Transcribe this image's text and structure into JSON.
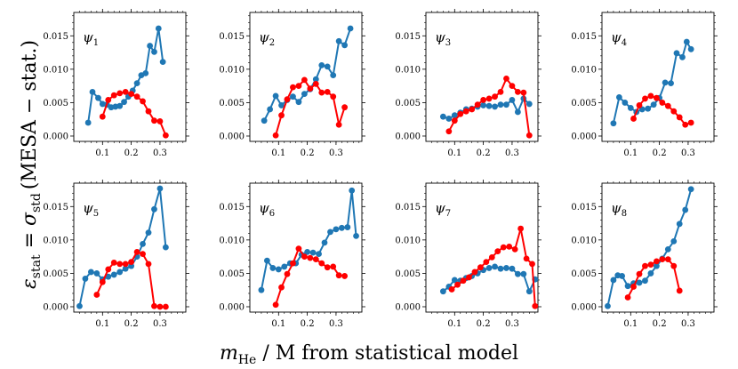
{
  "chart_data": {
    "type": "line",
    "layout": "2x4 grid of panels",
    "xlabel": "m_He / M from statistical model",
    "xlabel_parts": {
      "symbol": "m",
      "sub": "He",
      "rest": " / M from statistical model"
    },
    "ylabel": "ε_stat = σ_std (MESA − stat.)",
    "ylabel_parts": {
      "epsilon": "ε",
      "stat_sub": "stat",
      "equals": " = ",
      "sigma": "σ",
      "std_sub": "std",
      "paren": "(MESA − stat.)"
    },
    "xlim": [
      0.0,
      0.39
    ],
    "ylim": [
      -0.0008,
      0.0185
    ],
    "xticks": [
      0.1,
      0.2,
      0.3
    ],
    "xtick_labels": [
      "0.1",
      "0.2",
      "0.3"
    ],
    "yticks": [
      0.0,
      0.005,
      0.01,
      0.015
    ],
    "ytick_labels": [
      "0.000",
      "0.005",
      "0.010",
      "0.015"
    ],
    "series_colors": {
      "blue": "#1f77b4",
      "red": "#ff0000"
    },
    "panels": [
      {
        "label": "ψ",
        "sub": "1",
        "blue": {
          "x": [
            0.05,
            0.065,
            0.085,
            0.1,
            0.115,
            0.13,
            0.145,
            0.16,
            0.175,
            0.19,
            0.205,
            0.22,
            0.235,
            0.25,
            0.265,
            0.28,
            0.295,
            0.31
          ],
          "y": [
            0.002,
            0.0066,
            0.0057,
            0.0048,
            0.0047,
            0.0043,
            0.0044,
            0.0045,
            0.0051,
            0.0059,
            0.0068,
            0.0079,
            0.0091,
            0.0094,
            0.0135,
            0.0126,
            0.0161,
            0.0111
          ]
        },
        "red": {
          "x": [
            0.1,
            0.12,
            0.14,
            0.16,
            0.18,
            0.2,
            0.22,
            0.24,
            0.26,
            0.28,
            0.3,
            0.32
          ],
          "y": [
            0.0029,
            0.0054,
            0.0061,
            0.0064,
            0.0066,
            0.0063,
            0.0059,
            0.0052,
            0.0037,
            0.0023,
            0.0022,
            0.0001
          ]
        }
      },
      {
        "label": "ψ",
        "sub": "2",
        "blue": {
          "x": [
            0.05,
            0.07,
            0.09,
            0.11,
            0.13,
            0.15,
            0.17,
            0.19,
            0.21,
            0.23,
            0.25,
            0.27,
            0.29,
            0.31,
            0.33,
            0.35
          ],
          "y": [
            0.0023,
            0.004,
            0.006,
            0.0046,
            0.0054,
            0.0059,
            0.0051,
            0.0063,
            0.007,
            0.0085,
            0.0106,
            0.0104,
            0.0091,
            0.0142,
            0.0136,
            0.0161
          ]
        },
        "red": {
          "x": [
            0.09,
            0.11,
            0.13,
            0.15,
            0.17,
            0.19,
            0.21,
            0.23,
            0.25,
            0.27,
            0.29,
            0.31,
            0.33
          ],
          "y": [
            0.0001,
            0.0031,
            0.0055,
            0.0073,
            0.0075,
            0.0084,
            0.0071,
            0.0078,
            0.0065,
            0.0066,
            0.0059,
            0.0017,
            0.0043
          ]
        }
      },
      {
        "label": "ψ",
        "sub": "3",
        "blue": {
          "x": [
            0.06,
            0.08,
            0.1,
            0.12,
            0.14,
            0.16,
            0.18,
            0.2,
            0.22,
            0.24,
            0.26,
            0.28,
            0.3,
            0.32,
            0.34,
            0.36
          ],
          "y": [
            0.0029,
            0.0026,
            0.0031,
            0.0035,
            0.004,
            0.0041,
            0.0044,
            0.0046,
            0.0045,
            0.0044,
            0.0047,
            0.0047,
            0.0054,
            0.0036,
            0.0056,
            0.0048
          ]
        },
        "red": {
          "x": [
            0.08,
            0.1,
            0.12,
            0.14,
            0.16,
            0.18,
            0.2,
            0.22,
            0.24,
            0.26,
            0.28,
            0.3,
            0.32,
            0.34,
            0.36
          ],
          "y": [
            0.0007,
            0.0023,
            0.0033,
            0.0037,
            0.004,
            0.0047,
            0.0054,
            0.0056,
            0.0059,
            0.0066,
            0.0086,
            0.0075,
            0.0066,
            0.0065,
            0.0001
          ]
        }
      },
      {
        "label": "ψ",
        "sub": "4",
        "blue": {
          "x": [
            0.04,
            0.06,
            0.08,
            0.1,
            0.12,
            0.14,
            0.16,
            0.18,
            0.2,
            0.22,
            0.24,
            0.26,
            0.28,
            0.295,
            0.31
          ],
          "y": [
            0.0019,
            0.0058,
            0.005,
            0.0042,
            0.0036,
            0.004,
            0.0041,
            0.0047,
            0.0057,
            0.008,
            0.0079,
            0.0124,
            0.0118,
            0.0141,
            0.013
          ]
        },
        "red": {
          "x": [
            0.11,
            0.13,
            0.15,
            0.17,
            0.19,
            0.21,
            0.23,
            0.25,
            0.27,
            0.29,
            0.31
          ],
          "y": [
            0.0026,
            0.0046,
            0.0056,
            0.006,
            0.0057,
            0.005,
            0.0045,
            0.0037,
            0.0028,
            0.0017,
            0.002
          ]
        }
      },
      {
        "label": "ψ",
        "sub": "5",
        "blue": {
          "x": [
            0.02,
            0.04,
            0.06,
            0.08,
            0.1,
            0.12,
            0.14,
            0.16,
            0.18,
            0.2,
            0.22,
            0.24,
            0.26,
            0.28,
            0.3,
            0.32
          ],
          "y": [
            0.0001,
            0.0042,
            0.0052,
            0.005,
            0.0041,
            0.0045,
            0.0048,
            0.0052,
            0.0057,
            0.0061,
            0.0075,
            0.0094,
            0.0111,
            0.0146,
            0.0177,
            0.0089
          ]
        },
        "red": {
          "x": [
            0.08,
            0.1,
            0.12,
            0.14,
            0.16,
            0.18,
            0.2,
            0.22,
            0.24,
            0.26,
            0.28,
            0.3,
            0.32
          ],
          "y": [
            0.0018,
            0.0037,
            0.0056,
            0.0066,
            0.0064,
            0.0064,
            0.0067,
            0.0082,
            0.0079,
            0.0064,
            0.0001,
            0.0,
            0.0
          ]
        }
      },
      {
        "label": "ψ",
        "sub": "6",
        "blue": {
          "x": [
            0.04,
            0.06,
            0.08,
            0.1,
            0.12,
            0.14,
            0.16,
            0.18,
            0.2,
            0.22,
            0.24,
            0.26,
            0.28,
            0.3,
            0.32,
            0.34,
            0.355,
            0.37
          ],
          "y": [
            0.0025,
            0.0069,
            0.0058,
            0.0056,
            0.006,
            0.0065,
            0.0065,
            0.0078,
            0.0082,
            0.0081,
            0.0079,
            0.0096,
            0.0112,
            0.0116,
            0.0118,
            0.0119,
            0.0174,
            0.0106
          ]
        },
        "red": {
          "x": [
            0.09,
            0.11,
            0.13,
            0.15,
            0.17,
            0.19,
            0.21,
            0.23,
            0.25,
            0.27,
            0.29,
            0.31,
            0.33
          ],
          "y": [
            0.0003,
            0.0029,
            0.0049,
            0.0065,
            0.0087,
            0.0075,
            0.0073,
            0.0071,
            0.0065,
            0.0059,
            0.006,
            0.0047,
            0.0046
          ]
        }
      },
      {
        "label": "ψ",
        "sub": "7",
        "blue": {
          "x": [
            0.06,
            0.08,
            0.1,
            0.12,
            0.14,
            0.16,
            0.18,
            0.2,
            0.22,
            0.24,
            0.26,
            0.28,
            0.3,
            0.32,
            0.34,
            0.36,
            0.38
          ],
          "y": [
            0.0023,
            0.003,
            0.004,
            0.0039,
            0.0043,
            0.0046,
            0.005,
            0.0055,
            0.0058,
            0.006,
            0.0057,
            0.0058,
            0.0057,
            0.0049,
            0.0049,
            0.0023,
            0.0041
          ]
        },
        "red": {
          "x": [
            0.09,
            0.11,
            0.13,
            0.15,
            0.17,
            0.19,
            0.21,
            0.23,
            0.25,
            0.27,
            0.29,
            0.31,
            0.33,
            0.35,
            0.37,
            0.38
          ],
          "y": [
            0.0026,
            0.0033,
            0.0039,
            0.0044,
            0.0052,
            0.0059,
            0.0067,
            0.0074,
            0.0083,
            0.0089,
            0.009,
            0.0086,
            0.0117,
            0.0072,
            0.0064,
            0.0001
          ]
        }
      },
      {
        "label": "ψ",
        "sub": "8",
        "blue": {
          "x": [
            0.02,
            0.04,
            0.055,
            0.07,
            0.09,
            0.11,
            0.13,
            0.15,
            0.17,
            0.19,
            0.21,
            0.23,
            0.25,
            0.27,
            0.29,
            0.31
          ],
          "y": [
            0.0001,
            0.004,
            0.0047,
            0.0046,
            0.0031,
            0.0035,
            0.0036,
            0.0039,
            0.005,
            0.0061,
            0.0072,
            0.0086,
            0.0098,
            0.0124,
            0.0145,
            0.0176
          ]
        },
        "red": {
          "x": [
            0.09,
            0.11,
            0.13,
            0.15,
            0.17,
            0.19,
            0.21,
            0.23,
            0.25,
            0.27
          ],
          "y": [
            0.0014,
            0.003,
            0.0049,
            0.0061,
            0.0063,
            0.0068,
            0.0071,
            0.0071,
            0.0061,
            0.0024
          ]
        }
      }
    ]
  }
}
